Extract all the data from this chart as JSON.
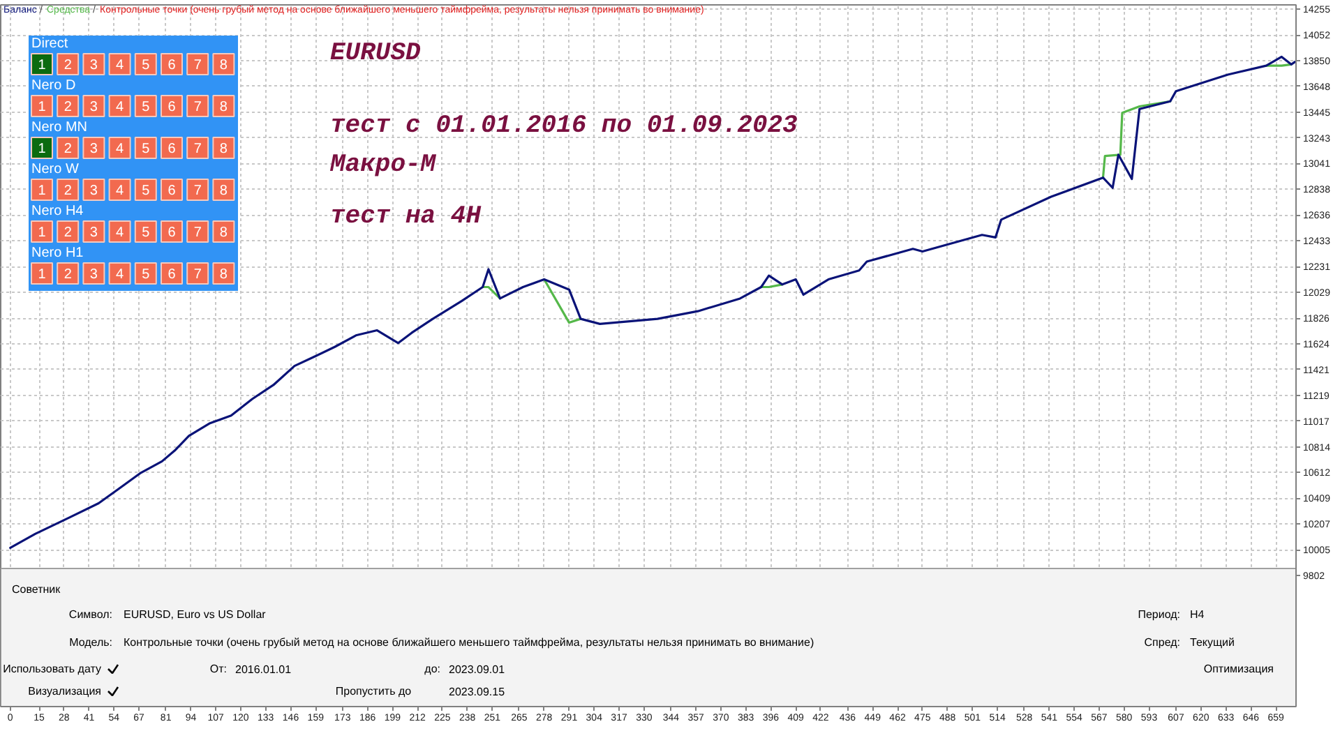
{
  "chart_data": {
    "type": "line",
    "xlim": [
      -5,
      669.5
    ],
    "ylim": [
      8772,
      14288
    ],
    "xticks": [
      0,
      15,
      28,
      41,
      54,
      67,
      81,
      94,
      107,
      120,
      133,
      146,
      159,
      173,
      186,
      199,
      212,
      225,
      238,
      251,
      265,
      278,
      291,
      304,
      317,
      330,
      344,
      357,
      370,
      383,
      396,
      409,
      422,
      436,
      449,
      462,
      475,
      488,
      501,
      514,
      528,
      541,
      554,
      567,
      580,
      593,
      607,
      620,
      633,
      646,
      659
    ],
    "yticks": [
      9802,
      10005,
      10207,
      10409,
      10612,
      10814,
      11017,
      11219,
      11421,
      11624,
      11826,
      12029,
      12231,
      12433,
      12636,
      12838,
      13041,
      13243,
      13445,
      13648,
      13850,
      14052,
      14255
    ],
    "grid": true,
    "series": [
      {
        "name": "Средства",
        "color": "#55b84a",
        "x": [
          246,
          249,
          255
        ],
        "values": [
          12070,
          12070,
          11980
        ]
      },
      {
        "color": "#55b84a",
        "x": [
          278,
          291,
          297
        ],
        "values": [
          12130,
          11790,
          11820
        ]
      },
      {
        "color": "#55b84a",
        "x": [
          391,
          395,
          402
        ],
        "values": [
          12070,
          12070,
          12090
        ]
      },
      {
        "color": "#55b84a",
        "x": [
          569,
          570,
          578,
          579,
          588,
          604
        ],
        "values": [
          12930,
          13100,
          13110,
          13440,
          13490,
          13530
        ]
      },
      {
        "color": "#55b84a",
        "x": [
          654,
          662,
          667
        ],
        "values": [
          13810,
          13810,
          13820
        ]
      },
      {
        "name": "Баланс",
        "color": "#0a1378",
        "x": [
          0,
          13,
          31,
          46,
          57,
          68,
          79,
          86,
          93,
          104,
          115,
          126,
          137,
          148,
          158,
          169,
          180,
          191,
          202,
          209,
          220,
          235,
          246,
          249,
          255,
          267,
          278,
          291,
          297,
          307,
          337,
          358,
          380,
          391,
          395,
          402,
          409,
          413,
          426,
          442,
          446,
          470,
          475,
          506,
          513,
          516,
          542,
          569,
          574,
          577,
          584,
          588,
          604,
          607,
          634,
          654,
          662,
          667,
          669
        ],
        "values": [
          10020,
          10130,
          10260,
          10370,
          10490,
          10610,
          10700,
          10790,
          10900,
          11000,
          11060,
          11190,
          11300,
          11450,
          11520,
          11600,
          11690,
          11730,
          11630,
          11710,
          11820,
          11960,
          12070,
          12210,
          11980,
          12070,
          12130,
          12050,
          11820,
          11780,
          11820,
          11880,
          11980,
          12070,
          12160,
          12090,
          12130,
          12010,
          12130,
          12200,
          12270,
          12370,
          12350,
          12480,
          12460,
          12600,
          12780,
          12930,
          12850,
          13110,
          12920,
          13470,
          13530,
          13610,
          13740,
          13810,
          13880,
          13820,
          13840
        ]
      }
    ],
    "annotations": [
      "EURUSD",
      "тест с 01.01.2016 по 01.09.2023",
      "Макро-М",
      "тест на 4H",
      "/",
      "/",
      "Контрольные точки (очень грубый метод на основе ближайшего меньшего таймфрейма, результаты нельзя принимать во внимание)",
      "Direct",
      "1",
      "2",
      "3",
      "4",
      "5",
      "6",
      "7",
      "8",
      "Nero D",
      "1",
      "2",
      "3",
      "4",
      "5",
      "6",
      "7",
      "8",
      "Nero MN",
      "1",
      "2",
      "3",
      "4",
      "5",
      "6",
      "7",
      "8",
      "Nero W",
      "1",
      "2",
      "3",
      "4",
      "5",
      "6",
      "7",
      "8",
      "Nero H4",
      "1",
      "2",
      "3",
      "4",
      "5",
      "6",
      "7",
      "8",
      "Nero H1",
      "1",
      "2",
      "3",
      "4",
      "5",
      "6",
      "7",
      "8",
      "Советник",
      "Символ:",
      "EURUSD, Euro vs US Dollar",
      "Период:",
      "H4",
      "Модель:",
      "Контрольные точки (очень грубый метод на основе ближайшего меньшего таймфрейма, результаты нельзя принимать во внимание)",
      "Спред:",
      "Текущий",
      "Использовать дату",
      "От:",
      "2016.01.01",
      "до:",
      "2023.09.01",
      "Оптимизация",
      "Визуализация",
      "Пропустить до",
      "2023.09.15"
    ]
  }
}
